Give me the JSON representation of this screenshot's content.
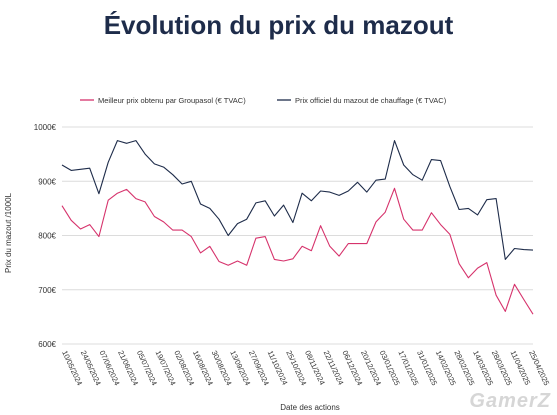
{
  "chart_data": {
    "type": "line",
    "title": "Évolution du prix du mazout",
    "xlabel": "Date des actions",
    "ylabel": "Prix du mazout /1000L",
    "ylim": [
      600,
      1000
    ],
    "yticks": [
      {
        "value": 600,
        "label": "600€"
      },
      {
        "value": 700,
        "label": "700€"
      },
      {
        "value": 800,
        "label": "800€"
      },
      {
        "value": 900,
        "label": "900€"
      },
      {
        "value": 1000,
        "label": "1000€"
      }
    ],
    "grid": true,
    "legend_position": "top",
    "x_labels": [
      "10/05/2024",
      "24/05/2024",
      "07/06/2024",
      "21/06/2024",
      "05/07/2024",
      "19/07/2024",
      "02/08/2024",
      "16/08/2024",
      "30/08/2024",
      "13/09/2024",
      "27/09/2024",
      "11/10/2024",
      "25/10/2024",
      "08/11/2024",
      "22/11/2024",
      "06/12/2024",
      "20/12/2024",
      "03/01/2025",
      "17/01/2025",
      "31/01/2025",
      "14/02/2025",
      "28/02/2025",
      "14/03/2025",
      "28/03/2025",
      "11/04/2025",
      "25/04/2025"
    ],
    "series": [
      {
        "name": "Meilleur prix obtenu par Groupasol (€ TVAC)",
        "color": "#d6336c",
        "values": [
          855,
          828,
          812,
          820,
          798,
          865,
          878,
          885,
          868,
          862,
          835,
          825,
          810,
          810,
          798,
          768,
          780,
          752,
          745,
          753,
          745,
          795,
          798,
          756,
          753,
          757,
          780,
          772,
          818,
          780,
          762,
          785,
          785,
          785,
          825,
          843,
          887,
          830,
          810,
          810,
          842,
          820,
          802,
          748,
          722,
          740,
          750,
          690,
          660,
          710,
          682,
          655
        ]
      },
      {
        "name": "Prix officiel du mazout de chauffage (€ TVAC)",
        "color": "#1e2c4a",
        "values": [
          930,
          920,
          922,
          924,
          877,
          935,
          975,
          970,
          975,
          950,
          932,
          926,
          912,
          895,
          900,
          858,
          850,
          830,
          800,
          822,
          830,
          860,
          864,
          836,
          856,
          824,
          878,
          864,
          882,
          880,
          874,
          882,
          898,
          880,
          902,
          904,
          975,
          930,
          912,
          902,
          940,
          938,
          890,
          848,
          850,
          838,
          866,
          868,
          756,
          776,
          774,
          773
        ]
      }
    ]
  },
  "watermark": "GamerZ"
}
